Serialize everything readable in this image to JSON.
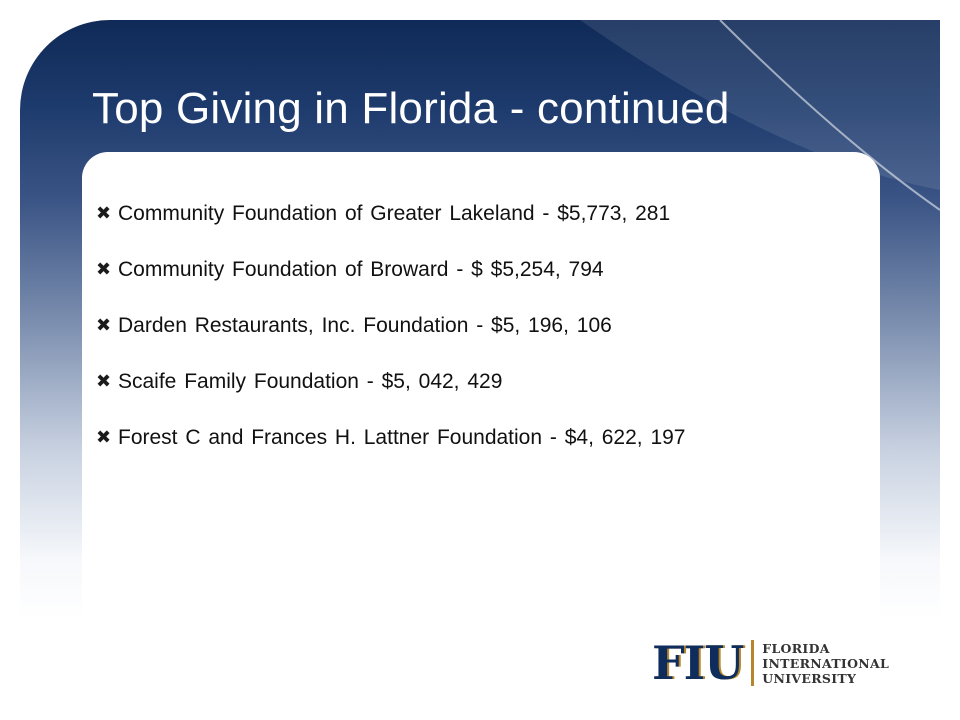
{
  "slide": {
    "title": "Top Giving in Florida - continued",
    "bullet_icon": "heavy-x-icon",
    "bullets": [
      "Community Foundation of Greater Lakeland - $5,773, 281",
      "Community Foundation of Broward - $ $5,254, 794",
      "Darden Restaurants, Inc. Foundation - $5, 196, 106",
      "Scaife Family Foundation - $5, 042, 429",
      "Forest C and Frances H. Lattner Foundation - $4, 622, 197"
    ]
  },
  "logo": {
    "mark": "FIU",
    "line1": "FLORIDA",
    "line2": "INTERNATIONAL",
    "line3": "UNIVERSITY",
    "colors": {
      "navy": "#0f2d5c",
      "gold": "#b6862c"
    }
  },
  "theme": {
    "header_dark": "#0f2a57",
    "title_color": "#ffffff",
    "text_color": "#111111"
  }
}
